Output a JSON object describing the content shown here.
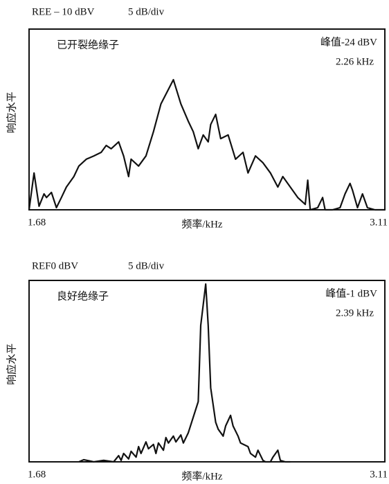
{
  "chart_data": [
    {
      "type": "line",
      "reference": "REE – 10 dBV",
      "scale": "5 dB/div",
      "title": "已开裂绝缘子",
      "annotations": [
        "峰值-24 dBV",
        "2.26 kHz"
      ],
      "y_label": "响应水平",
      "x_label": "频率/kHz",
      "xlim": [
        1.68,
        3.11
      ],
      "ylim": [
        -60,
        -10
      ],
      "xticks": [
        1.68,
        3.11
      ],
      "color": "#111111",
      "x": [
        1.68,
        1.7,
        1.72,
        1.74,
        1.75,
        1.77,
        1.79,
        1.81,
        1.83,
        1.86,
        1.88,
        1.91,
        1.94,
        1.97,
        1.99,
        2.01,
        2.04,
        2.06,
        2.08,
        2.09,
        2.12,
        2.15,
        2.18,
        2.21,
        2.26,
        2.29,
        2.32,
        2.34,
        2.36,
        2.38,
        2.4,
        2.41,
        2.43,
        2.45,
        2.48,
        2.51,
        2.54,
        2.56,
        2.59,
        2.62,
        2.65,
        2.68,
        2.7,
        2.73,
        2.76,
        2.79,
        2.8,
        2.81,
        2.84,
        2.86,
        2.87,
        2.9,
        2.93,
        2.95,
        2.97,
        2.98,
        3.0,
        3.02,
        3.04,
        3.07,
        3.11
      ],
      "values": [
        -60,
        -49.8,
        -59,
        -55.6,
        -56.6,
        -55.2,
        -59.4,
        -56.6,
        -53.7,
        -50.8,
        -47.9,
        -46,
        -45.1,
        -44.1,
        -42.2,
        -43.1,
        -41.2,
        -45.1,
        -50.8,
        -46,
        -47.9,
        -45.1,
        -38.4,
        -30.7,
        -24,
        -30.7,
        -35.5,
        -38.4,
        -43.1,
        -39.3,
        -41.2,
        -36.4,
        -33.6,
        -40.3,
        -39.3,
        -46,
        -44.1,
        -49.8,
        -45.1,
        -47,
        -49.8,
        -53.7,
        -50.8,
        -53.7,
        -56.6,
        -58.5,
        -51.8,
        -60,
        -59.4,
        -56.6,
        -60,
        -60,
        -59.4,
        -55.6,
        -52.7,
        -54.6,
        -59.4,
        -55.6,
        -59.4,
        -60,
        -60
      ]
    },
    {
      "type": "line",
      "reference": "REF0 dBV",
      "scale": "5 dB/div",
      "title": "良好绝缘子",
      "annotations": [
        "峰值-1 dBV",
        "2.39 kHz"
      ],
      "y_label": "响应水平",
      "x_label": "频率/kHz",
      "xlim": [
        1.68,
        3.11
      ],
      "ylim": [
        -50,
        0
      ],
      "xticks": [
        1.68,
        3.11
      ],
      "color": "#111111",
      "x": [
        1.88,
        1.9,
        1.94,
        1.98,
        2.02,
        2.04,
        2.05,
        2.06,
        2.08,
        2.09,
        2.11,
        2.12,
        2.13,
        2.15,
        2.16,
        2.18,
        2.19,
        2.2,
        2.22,
        2.23,
        2.24,
        2.26,
        2.27,
        2.29,
        2.3,
        2.32,
        2.36,
        2.37,
        2.39,
        2.4,
        2.41,
        2.43,
        2.44,
        2.46,
        2.47,
        2.49,
        2.5,
        2.52,
        2.53,
        2.56,
        2.57,
        2.59,
        2.6,
        2.62,
        2.63,
        2.65,
        2.66,
        2.68,
        2.69,
        2.71,
        2.73
      ],
      "values": [
        -50,
        -49.4,
        -50,
        -49.6,
        -50,
        -48.3,
        -49.6,
        -47.7,
        -49.2,
        -47.1,
        -48.7,
        -45.8,
        -47.7,
        -44.5,
        -46.4,
        -45.2,
        -47.7,
        -44.8,
        -46.8,
        -43.3,
        -44.8,
        -42.9,
        -44.5,
        -42.6,
        -44.8,
        -42,
        -33.4,
        -12.4,
        -1,
        -12.4,
        -29.6,
        -39.1,
        -41,
        -42.9,
        -40.1,
        -37.2,
        -40.1,
        -42.9,
        -44.8,
        -45.8,
        -47.7,
        -48.7,
        -46.8,
        -49.6,
        -50,
        -50,
        -48.7,
        -46.8,
        -49.6,
        -50,
        -50
      ]
    }
  ]
}
